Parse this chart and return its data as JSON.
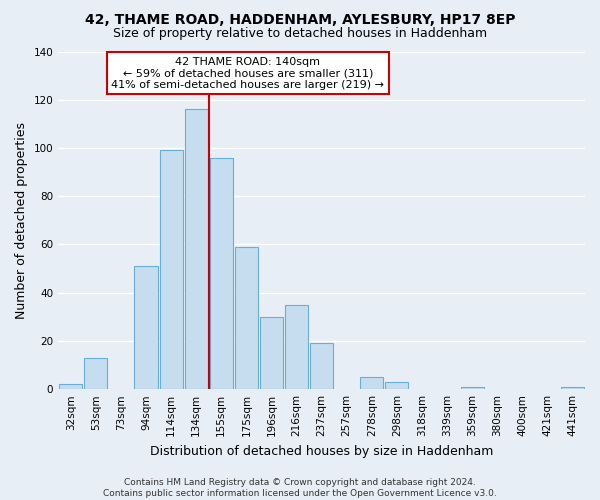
{
  "title": "42, THAME ROAD, HADDENHAM, AYLESBURY, HP17 8EP",
  "subtitle": "Size of property relative to detached houses in Haddenham",
  "xlabel": "Distribution of detached houses by size in Haddenham",
  "ylabel": "Number of detached properties",
  "bar_labels": [
    "32sqm",
    "53sqm",
    "73sqm",
    "94sqm",
    "114sqm",
    "134sqm",
    "155sqm",
    "175sqm",
    "196sqm",
    "216sqm",
    "237sqm",
    "257sqm",
    "278sqm",
    "298sqm",
    "318sqm",
    "339sqm",
    "359sqm",
    "380sqm",
    "400sqm",
    "421sqm",
    "441sqm"
  ],
  "bar_heights": [
    2,
    13,
    0,
    51,
    99,
    116,
    96,
    59,
    30,
    35,
    19,
    0,
    5,
    3,
    0,
    0,
    1,
    0,
    0,
    0,
    1
  ],
  "bar_color": "#c5ddef",
  "bar_edge_color": "#6aaed6",
  "vline_x": 5.5,
  "vline_color": "#cc0000",
  "annotation_lines": [
    "42 THAME ROAD: 140sqm",
    "← 59% of detached houses are smaller (311)",
    "41% of semi-detached houses are larger (219) →"
  ],
  "annotation_box_color": "#ffffff",
  "annotation_box_edge_color": "#cc0000",
  "ylim": [
    0,
    140
  ],
  "yticks": [
    0,
    20,
    40,
    60,
    80,
    100,
    120,
    140
  ],
  "footer_lines": [
    "Contains HM Land Registry data © Crown copyright and database right 2024.",
    "Contains public sector information licensed under the Open Government Licence v3.0."
  ],
  "background_color": "#e8eef5",
  "grid_color": "#ffffff",
  "title_fontsize": 10,
  "subtitle_fontsize": 9,
  "axis_label_fontsize": 9,
  "tick_fontsize": 7.5,
  "footer_fontsize": 6.5,
  "annotation_fontsize": 8
}
